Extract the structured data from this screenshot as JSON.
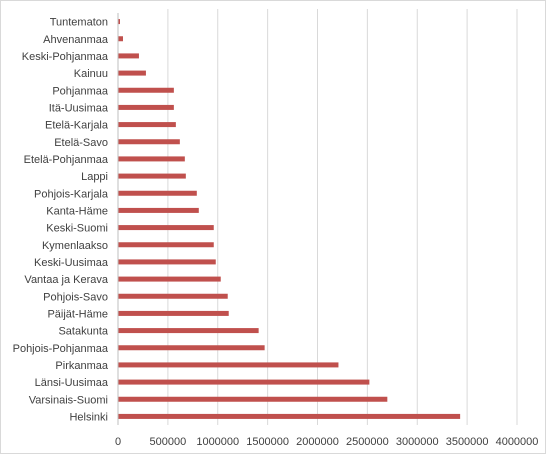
{
  "chart_data": {
    "type": "bar",
    "orientation": "horizontal",
    "title": "",
    "xlabel": "",
    "ylabel": "",
    "xlim": [
      0,
      4000000
    ],
    "x_ticks": [
      0,
      500000,
      1000000,
      1500000,
      2000000,
      2500000,
      3000000,
      3500000,
      4000000
    ],
    "grid": "vertical",
    "legend": "none",
    "bar_color": "#C0504D",
    "categories": [
      "Tuntematon",
      "Ahvenanmaa",
      "Keski-Pohjanmaa",
      "Kainuu",
      "Pohjanmaa",
      "Itä-Uusimaa",
      "Etelä-Karjala",
      "Etelä-Savo",
      "Etelä-Pohjanmaa",
      "Lappi",
      "Pohjois-Karjala",
      "Kanta-Häme",
      "Keski-Suomi",
      "Kymenlaakso",
      "Keski-Uusimaa",
      "Vantaa ja Kerava",
      "Pohjois-Savo",
      "Päijät-Häme",
      "Satakunta",
      "Pohjois-Pohjanmaa",
      "Pirkanmaa",
      "Länsi-Uusimaa",
      "Varsinais-Suomi",
      "Helsinki"
    ],
    "values": [
      20000,
      50000,
      210000,
      280000,
      560000,
      560000,
      580000,
      620000,
      670000,
      680000,
      790000,
      810000,
      960000,
      960000,
      980000,
      1030000,
      1100000,
      1110000,
      1410000,
      1470000,
      2210000,
      2520000,
      2700000,
      3430000
    ]
  }
}
